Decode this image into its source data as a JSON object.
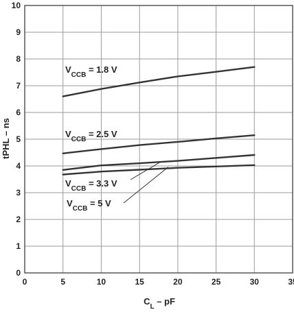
{
  "chart_data": {
    "type": "line",
    "xlabel_main": "C",
    "xlabel_sub": "L",
    "xlabel_rest": " – pF",
    "ylabel": "tPHL – ns",
    "xlim": [
      0,
      35
    ],
    "ylim": [
      0,
      10
    ],
    "xticks": [
      0,
      5,
      10,
      15,
      20,
      25,
      30,
      35
    ],
    "yticks": [
      0,
      1,
      2,
      3,
      4,
      5,
      6,
      7,
      8,
      9,
      10
    ],
    "grid": true,
    "series": [
      {
        "label_main": "V",
        "label_sub": "CCB",
        "label_rest": " = 1.8 V",
        "x": [
          5,
          10,
          15,
          20,
          25,
          30
        ],
        "y": [
          6.6,
          6.88,
          7.12,
          7.35,
          7.52,
          7.7
        ]
      },
      {
        "label_main": "V",
        "label_sub": "CCB",
        "label_rest": " = 2.5 V",
        "x": [
          5,
          10,
          15,
          20,
          25,
          30
        ],
        "y": [
          4.47,
          4.63,
          4.78,
          4.9,
          5.03,
          5.15
        ]
      },
      {
        "label_main": "V",
        "label_sub": "CCB",
        "label_rest": " = 3.3 V",
        "x": [
          5,
          10,
          15,
          20,
          25,
          30
        ],
        "y": [
          3.85,
          4.02,
          4.1,
          4.19,
          4.3,
          4.41
        ]
      },
      {
        "label_main": "V",
        "label_sub": "CCB",
        "label_rest": " = 5 V",
        "x": [
          5,
          10,
          15,
          20,
          25,
          30
        ],
        "y": [
          3.68,
          3.79,
          3.86,
          3.93,
          3.98,
          4.03
        ]
      }
    ]
  }
}
